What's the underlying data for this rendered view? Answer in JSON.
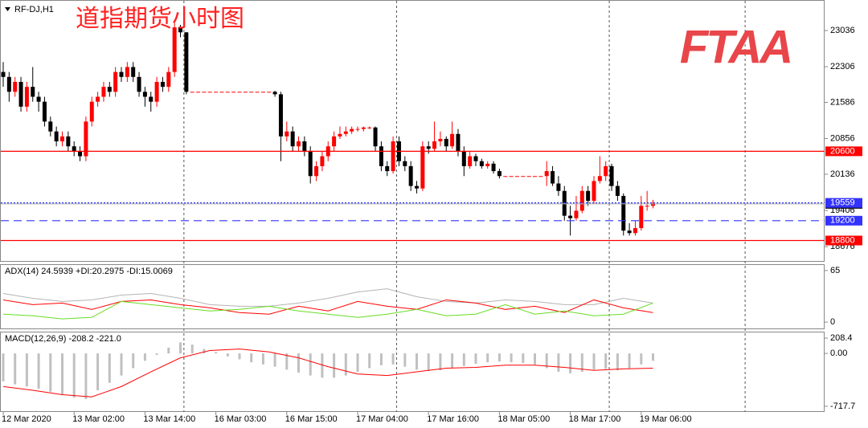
{
  "chart_data": [
    {
      "type": "candlestick",
      "title": "RF-DJ,H1",
      "annotation": "道指期货小时图",
      "logo": "FTAA",
      "up_color": "#ff0000",
      "down_color": "#000000",
      "ylim": [
        18387,
        23652
      ],
      "yticks": [
        23036,
        22306,
        21586,
        20856,
        20136,
        19406,
        18676
      ],
      "xticks": [
        {
          "value": 0,
          "label": "12 Mar 2020"
        },
        {
          "value": 12,
          "label": "13 Mar 02:00"
        },
        {
          "value": 24,
          "label": "13 Mar 14:00"
        },
        {
          "value": 36,
          "label": "16 Mar 03:00"
        },
        {
          "value": 48,
          "label": "16 Mar 15:00"
        },
        {
          "value": 60,
          "label": "17 Mar 04:00"
        },
        {
          "value": 72,
          "label": "17 Mar 16:00"
        },
        {
          "value": 84,
          "label": "18 Mar 05:00"
        },
        {
          "value": 96,
          "label": "18 Mar 17:00"
        },
        {
          "value": 108,
          "label": "19 Mar 06:00"
        }
      ],
      "separators": [
        31,
        67,
        103,
        126
      ],
      "levels": [
        {
          "value": 20600,
          "color": "#ff0000",
          "dash": "solid"
        },
        {
          "value": 19540,
          "color": "#b0b0b0",
          "dash": "solid"
        },
        {
          "value": 19559,
          "color": "#3333ff",
          "dash": "dotted"
        },
        {
          "value": 19200,
          "color": "#3333ff",
          "dash": "dashed"
        },
        {
          "value": 18800,
          "color": "#ff0000",
          "dash": "solid"
        }
      ],
      "candles": [
        [
          22200,
          22400,
          21900,
          22100
        ],
        [
          22100,
          22200,
          21600,
          21800
        ],
        [
          21800,
          22100,
          21700,
          22000
        ],
        [
          22000,
          22100,
          21400,
          21500
        ],
        [
          21500,
          22000,
          21400,
          21900
        ],
        [
          21900,
          22300,
          21600,
          21700
        ],
        [
          21700,
          21800,
          21400,
          21600
        ],
        [
          21600,
          21700,
          21100,
          21200
        ],
        [
          21200,
          21300,
          20900,
          21000
        ],
        [
          21000,
          21100,
          20700,
          20800
        ],
        [
          20800,
          21000,
          20700,
          20900
        ],
        [
          20900,
          21000,
          20600,
          20700
        ],
        [
          20700,
          20800,
          20500,
          20600
        ],
        [
          20600,
          20700,
          20400,
          20500
        ],
        [
          20500,
          21300,
          20400,
          21200
        ],
        [
          21200,
          21700,
          21100,
          21600
        ],
        [
          21600,
          21800,
          21500,
          21700
        ],
        [
          21700,
          22000,
          21600,
          21900
        ],
        [
          21900,
          22000,
          21700,
          21800
        ],
        [
          21800,
          22300,
          21700,
          22200
        ],
        [
          22200,
          22300,
          22000,
          22100
        ],
        [
          22100,
          22400,
          22000,
          22300
        ],
        [
          22300,
          22400,
          22000,
          22100
        ],
        [
          22100,
          22200,
          21700,
          21800
        ],
        [
          21800,
          21900,
          21500,
          21700
        ],
        [
          21700,
          21800,
          21400,
          21600
        ],
        [
          21600,
          22100,
          21500,
          22000
        ],
        [
          22000,
          22100,
          21800,
          21900
        ],
        [
          21900,
          22300,
          21800,
          22200
        ],
        [
          22200,
          23200,
          22100,
          23100
        ],
        [
          23100,
          23150,
          22900,
          23000
        ],
        [
          23000,
          23000,
          21750,
          21800
        ],
        [
          21800,
          21800,
          21800,
          21800
        ],
        [
          21800,
          21800,
          21800,
          21800
        ],
        [
          21800,
          21800,
          21800,
          21800
        ],
        [
          21800,
          21800,
          21800,
          21800
        ],
        [
          21800,
          21800,
          21800,
          21800
        ],
        [
          21800,
          21800,
          21800,
          21800
        ],
        [
          21800,
          21800,
          21800,
          21800
        ],
        [
          21800,
          21800,
          21800,
          21800
        ],
        [
          21800,
          21800,
          21800,
          21800
        ],
        [
          21800,
          21800,
          21800,
          21800
        ],
        [
          21800,
          21800,
          21800,
          21800
        ],
        [
          21800,
          21800,
          21800,
          21800
        ],
        [
          21800,
          21800,
          21800,
          21800
        ],
        [
          21800,
          21800,
          21800,
          21800
        ],
        [
          21800,
          21820,
          21700,
          21750
        ],
        [
          21750,
          21800,
          20400,
          20900
        ],
        [
          20900,
          21200,
          20800,
          21000
        ],
        [
          21000,
          21100,
          20600,
          20700
        ],
        [
          20700,
          20900,
          20600,
          20800
        ],
        [
          20800,
          20900,
          20500,
          20600
        ],
        [
          20600,
          20700,
          19950,
          20100
        ],
        [
          20100,
          20400,
          20000,
          20300
        ],
        [
          20300,
          20600,
          20200,
          20500
        ],
        [
          20500,
          20800,
          20400,
          20700
        ],
        [
          20700,
          21000,
          20600,
          20900
        ],
        [
          20900,
          21100,
          20850,
          20950
        ],
        [
          20950,
          21100,
          20900,
          21000
        ],
        [
          21000,
          21100,
          20950,
          21050
        ],
        [
          21050,
          21100,
          21000,
          21050
        ],
        [
          21050,
          21100,
          21000,
          21080
        ],
        [
          21080,
          21100,
          21050,
          21080
        ],
        [
          21080,
          21100,
          20600,
          20700
        ],
        [
          20700,
          20800,
          20200,
          20300
        ],
        [
          20300,
          20400,
          20100,
          20200
        ],
        [
          20200,
          20900,
          20150,
          20800
        ],
        [
          20800,
          20900,
          20300,
          20400
        ],
        [
          20400,
          20500,
          20200,
          20300
        ],
        [
          20300,
          20400,
          19800,
          19900
        ],
        [
          19900,
          20000,
          19750,
          19850
        ],
        [
          19850,
          20800,
          19800,
          20700
        ],
        [
          20700,
          20800,
          20550,
          20650
        ],
        [
          20650,
          21200,
          20600,
          20800
        ],
        [
          20800,
          21000,
          20700,
          20850
        ],
        [
          20850,
          20900,
          20600,
          20700
        ],
        [
          20700,
          21200,
          20650,
          20950
        ],
        [
          20950,
          21050,
          20500,
          20600
        ],
        [
          20600,
          20700,
          20100,
          20300
        ],
        [
          20300,
          20600,
          20250,
          20500
        ],
        [
          20500,
          20550,
          20300,
          20400
        ],
        [
          20400,
          20450,
          20250,
          20300
        ],
        [
          20300,
          20400,
          20250,
          20350
        ],
        [
          20350,
          20400,
          20150,
          20200
        ],
        [
          20200,
          20250,
          20050,
          20100
        ],
        [
          20100,
          20100,
          20100,
          20100
        ],
        [
          20100,
          20100,
          20100,
          20100
        ],
        [
          20100,
          20100,
          20100,
          20100
        ],
        [
          20100,
          20100,
          20100,
          20100
        ],
        [
          20100,
          20100,
          20100,
          20100
        ],
        [
          20100,
          20100,
          20100,
          20100
        ],
        [
          20100,
          20100,
          20100,
          20100
        ],
        [
          20100,
          20400,
          19900,
          20200
        ],
        [
          20200,
          20300,
          19900,
          19950
        ],
        [
          19950,
          20100,
          19700,
          19800
        ],
        [
          19800,
          19900,
          19200,
          19300
        ],
        [
          19300,
          19500,
          18900,
          19250
        ],
        [
          19250,
          19700,
          19200,
          19400
        ],
        [
          19400,
          19900,
          19350,
          19800
        ],
        [
          19800,
          19900,
          19500,
          19600
        ],
        [
          19600,
          20100,
          19550,
          20000
        ],
        [
          20000,
          20500,
          19950,
          20100
        ],
        [
          20100,
          20400,
          20000,
          20300
        ],
        [
          20300,
          20350,
          19800,
          19900
        ],
        [
          19900,
          20000,
          19600,
          19700
        ],
        [
          19700,
          19750,
          18900,
          19000
        ],
        [
          19000,
          19150,
          18900,
          18950
        ],
        [
          18950,
          19200,
          18900,
          19050
        ],
        [
          19050,
          19700,
          19000,
          19500
        ],
        [
          19500,
          19800,
          19400,
          19500
        ],
        [
          19500,
          19620,
          19450,
          19560
        ]
      ]
    },
    {
      "type": "line",
      "label": "ADX(14) 24.5939 +DI:20.2975 -DI:15.0069",
      "ylim": [
        -9,
        72
      ],
      "yticks": [
        65,
        0
      ],
      "step": 5,
      "series": [
        {
          "color": "#b4b4b4",
          "values": [
            36,
            30,
            26,
            28,
            34,
            36,
            30,
            22,
            20,
            20,
            24,
            30,
            38,
            42,
            32,
            26,
            24,
            28,
            26,
            22,
            22,
            30,
            24
          ]
        },
        {
          "color": "#ff0000",
          "values": [
            28,
            22,
            24,
            16,
            26,
            28,
            22,
            18,
            12,
            10,
            20,
            14,
            26,
            20,
            16,
            28,
            24,
            16,
            20,
            12,
            28,
            18,
            12
          ]
        },
        {
          "color": "#66dd22",
          "values": [
            10,
            8,
            4,
            6,
            26,
            22,
            18,
            14,
            16,
            20,
            14,
            10,
            6,
            10,
            16,
            8,
            10,
            22,
            10,
            14,
            8,
            10,
            24
          ]
        }
      ]
    },
    {
      "type": "macd",
      "label": "MACD(12,26,9) -208.2 -221.0",
      "ylim": [
        -795,
        285
      ],
      "yticks": [
        208.4,
        {
          "value": 0,
          "label": "0.00"
        },
        -717.7
      ],
      "histogram": {
        "color": "#c0c0c0",
        "step": 2,
        "values": [
          -380,
          -420,
          -450,
          -480,
          -520,
          -560,
          -600,
          -620,
          -500,
          -400,
          -300,
          -200,
          -100,
          -20,
          80,
          150,
          120,
          60,
          20,
          -40,
          -80,
          -120,
          -150,
          -180,
          -220,
          -260,
          -300,
          -330,
          -330,
          -300,
          -250,
          -200,
          -160,
          -150,
          -180,
          -220,
          -240,
          -230,
          -200,
          -170,
          -140,
          -120,
          -110,
          -120,
          -130,
          -150,
          -200,
          -250,
          -270,
          -250,
          -220,
          -210,
          -230,
          -200,
          -150,
          -100
        ]
      },
      "signal": {
        "color": "#ff0000",
        "step": 5,
        "values": [
          -450,
          -500,
          -560,
          -590,
          -450,
          -250,
          -60,
          40,
          60,
          20,
          -60,
          -180,
          -280,
          -300,
          -250,
          -200,
          -190,
          -160,
          -160,
          -190,
          -230,
          -210,
          -200
        ]
      }
    }
  ]
}
